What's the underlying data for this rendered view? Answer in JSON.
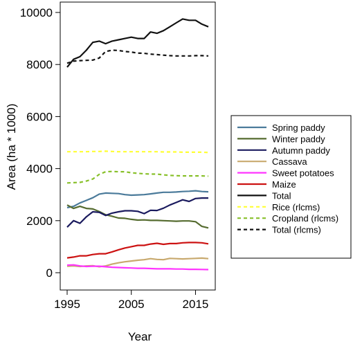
{
  "chart_data": {
    "type": "line",
    "xlabel": "Year",
    "ylabel": "Area (ha * 1000)",
    "xlim": [
      1995,
      2017
    ],
    "ylim": [
      0,
      10000
    ],
    "x_ticks": [
      1995,
      2005,
      2015
    ],
    "y_ticks": [
      0,
      2000,
      4000,
      6000,
      8000,
      10000
    ],
    "legend_position": "right",
    "x": [
      1995,
      1996,
      1997,
      1998,
      1999,
      2000,
      2001,
      2002,
      2003,
      2004,
      2005,
      2006,
      2007,
      2008,
      2009,
      2010,
      2011,
      2012,
      2013,
      2014,
      2015,
      2016,
      2017
    ],
    "series": [
      {
        "name": "Spring paddy",
        "color": "#4a7a9a",
        "dash": "solid",
        "values": [
          2500,
          2550,
          2680,
          2780,
          2880,
          3020,
          3060,
          3050,
          3040,
          3000,
          2980,
          2990,
          3000,
          3030,
          3060,
          3090,
          3090,
          3100,
          3120,
          3130,
          3150,
          3120,
          3110
        ]
      },
      {
        "name": "Winter paddy",
        "color": "#556b2f",
        "dash": "solid",
        "values": [
          2600,
          2470,
          2550,
          2470,
          2450,
          2350,
          2230,
          2170,
          2100,
          2090,
          2050,
          2020,
          2030,
          2010,
          2010,
          2000,
          1990,
          1980,
          1990,
          1990,
          1960,
          1780,
          1720
        ]
      },
      {
        "name": "Autumn paddy",
        "color": "#1a1a5e",
        "dash": "solid",
        "values": [
          1750,
          2000,
          1900,
          2150,
          2340,
          2320,
          2200,
          2290,
          2340,
          2380,
          2380,
          2360,
          2270,
          2400,
          2390,
          2480,
          2600,
          2700,
          2800,
          2740,
          2850,
          2870,
          2870
        ]
      },
      {
        "name": "Cassava",
        "color": "#c8a96e",
        "dash": "solid",
        "values": [
          250,
          260,
          240,
          260,
          270,
          230,
          260,
          330,
          380,
          420,
          450,
          480,
          500,
          540,
          510,
          500,
          550,
          540,
          530,
          540,
          550,
          560,
          540
        ]
      },
      {
        "name": "Sweet potatoes",
        "color": "#ff33ff",
        "dash": "solid",
        "values": [
          290,
          300,
          260,
          240,
          250,
          250,
          230,
          210,
          200,
          190,
          180,
          170,
          170,
          160,
          150,
          150,
          150,
          140,
          140,
          130,
          130,
          125,
          120
        ]
      },
      {
        "name": "Maize",
        "color": "#cc1111",
        "dash": "solid",
        "values": [
          570,
          600,
          650,
          650,
          700,
          730,
          730,
          800,
          880,
          950,
          1000,
          1050,
          1050,
          1100,
          1130,
          1090,
          1120,
          1120,
          1150,
          1160,
          1160,
          1150,
          1110
        ]
      },
      {
        "name": "Total",
        "color": "#111111",
        "dash": "solid",
        "values": [
          7900,
          8200,
          8300,
          8550,
          8850,
          8900,
          8800,
          8900,
          8950,
          9000,
          9050,
          9000,
          9000,
          9250,
          9200,
          9300,
          9450,
          9600,
          9750,
          9700,
          9700,
          9550,
          9450
        ]
      },
      {
        "name": "Rice (rlcms)",
        "color": "#ffff33",
        "dash": "dashed",
        "values": [
          4650,
          4650,
          4650,
          4650,
          4660,
          4660,
          4670,
          4660,
          4650,
          4650,
          4650,
          4650,
          4650,
          4650,
          4650,
          4640,
          4640,
          4640,
          4630,
          4630,
          4630,
          4630,
          4620
        ]
      },
      {
        "name": "Cropland (rlcms)",
        "color": "#88c02a",
        "dash": "dashed",
        "values": [
          3450,
          3460,
          3470,
          3520,
          3600,
          3780,
          3880,
          3890,
          3880,
          3880,
          3840,
          3820,
          3800,
          3790,
          3790,
          3760,
          3740,
          3730,
          3720,
          3720,
          3720,
          3720,
          3710
        ]
      },
      {
        "name": "Total (rlcms)",
        "color": "#111111",
        "dash": "dashed",
        "values": [
          8050,
          8130,
          8150,
          8160,
          8170,
          8250,
          8500,
          8550,
          8540,
          8500,
          8480,
          8440,
          8430,
          8400,
          8380,
          8360,
          8340,
          8330,
          8330,
          8330,
          8340,
          8340,
          8330
        ]
      }
    ]
  }
}
